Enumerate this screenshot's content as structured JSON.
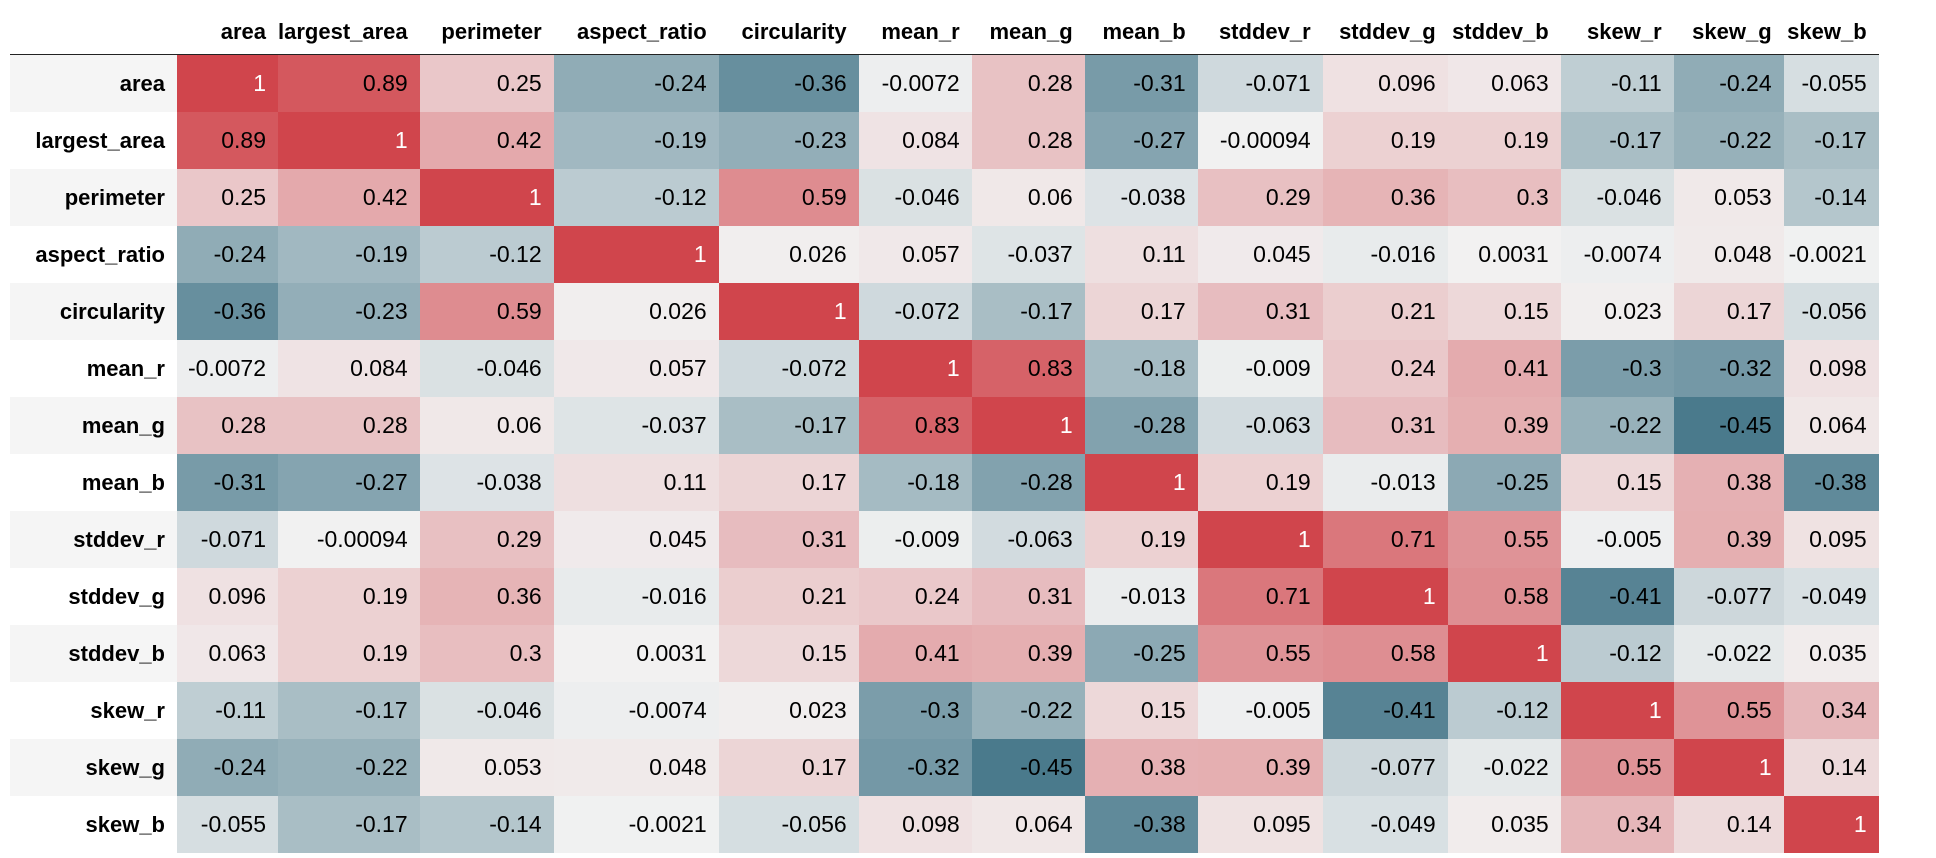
{
  "chart_data": {
    "type": "heatmap",
    "columns": [
      "area",
      "largest_area",
      "perimeter",
      "aspect_ratio",
      "circularity",
      "mean_r",
      "mean_g",
      "mean_b",
      "stddev_r",
      "stddev_g",
      "stddev_b",
      "skew_r",
      "skew_g",
      "skew_b"
    ],
    "rows": [
      "area",
      "largest_area",
      "perimeter",
      "aspect_ratio",
      "circularity",
      "mean_r",
      "mean_g",
      "mean_b",
      "stddev_r",
      "stddev_g",
      "stddev_b",
      "skew_r",
      "skew_g",
      "skew_b"
    ],
    "labels": [
      [
        "1",
        "0.89",
        "0.25",
        "-0.24",
        "-0.36",
        "-0.0072",
        "0.28",
        "-0.31",
        "-0.071",
        "0.096",
        "0.063",
        "-0.11",
        "-0.24",
        "-0.055"
      ],
      [
        "0.89",
        "1",
        "0.42",
        "-0.19",
        "-0.23",
        "0.084",
        "0.28",
        "-0.27",
        "-0.00094",
        "0.19",
        "0.19",
        "-0.17",
        "-0.22",
        "-0.17"
      ],
      [
        "0.25",
        "0.42",
        "1",
        "-0.12",
        "0.59",
        "-0.046",
        "0.06",
        "-0.038",
        "0.29",
        "0.36",
        "0.3",
        "-0.046",
        "0.053",
        "-0.14"
      ],
      [
        "-0.24",
        "-0.19",
        "-0.12",
        "1",
        "0.026",
        "0.057",
        "-0.037",
        "0.11",
        "0.045",
        "-0.016",
        "0.0031",
        "-0.0074",
        "0.048",
        "-0.0021"
      ],
      [
        "-0.36",
        "-0.23",
        "0.59",
        "0.026",
        "1",
        "-0.072",
        "-0.17",
        "0.17",
        "0.31",
        "0.21",
        "0.15",
        "0.023",
        "0.17",
        "-0.056"
      ],
      [
        "-0.0072",
        "0.084",
        "-0.046",
        "0.057",
        "-0.072",
        "1",
        "0.83",
        "-0.18",
        "-0.009",
        "0.24",
        "0.41",
        "-0.3",
        "-0.32",
        "0.098"
      ],
      [
        "0.28",
        "0.28",
        "0.06",
        "-0.037",
        "-0.17",
        "0.83",
        "1",
        "-0.28",
        "-0.063",
        "0.31",
        "0.39",
        "-0.22",
        "-0.45",
        "0.064"
      ],
      [
        "-0.31",
        "-0.27",
        "-0.038",
        "0.11",
        "0.17",
        "-0.18",
        "-0.28",
        "1",
        "0.19",
        "-0.013",
        "-0.25",
        "0.15",
        "0.38",
        "-0.38"
      ],
      [
        "-0.071",
        "-0.00094",
        "0.29",
        "0.045",
        "0.31",
        "-0.009",
        "-0.063",
        "0.19",
        "1",
        "0.71",
        "0.55",
        "-0.005",
        "0.39",
        "0.095"
      ],
      [
        "0.096",
        "0.19",
        "0.36",
        "-0.016",
        "0.21",
        "0.24",
        "0.31",
        "-0.013",
        "0.71",
        "1",
        "0.58",
        "-0.41",
        "-0.077",
        "-0.049"
      ],
      [
        "0.063",
        "0.19",
        "0.3",
        "0.0031",
        "0.15",
        "0.41",
        "0.39",
        "-0.25",
        "0.55",
        "0.58",
        "1",
        "-0.12",
        "-0.022",
        "0.035"
      ],
      [
        "-0.11",
        "-0.17",
        "-0.046",
        "-0.0074",
        "0.023",
        "-0.3",
        "-0.22",
        "0.15",
        "-0.005",
        "-0.41",
        "-0.12",
        "1",
        "0.55",
        "0.34"
      ],
      [
        "-0.24",
        "-0.22",
        "0.053",
        "0.048",
        "0.17",
        "-0.32",
        "-0.45",
        "0.38",
        "0.39",
        "-0.077",
        "-0.022",
        "0.55",
        "1",
        "0.14"
      ],
      [
        "-0.055",
        "-0.17",
        "-0.14",
        "-0.0021",
        "-0.056",
        "0.098",
        "0.064",
        "-0.38",
        "0.095",
        "-0.049",
        "0.035",
        "0.34",
        "0.14",
        "1"
      ]
    ],
    "colors": {
      "negative": "#4a7a8c",
      "neutral": "#f2f2f2",
      "positive": "#d0454c"
    }
  }
}
